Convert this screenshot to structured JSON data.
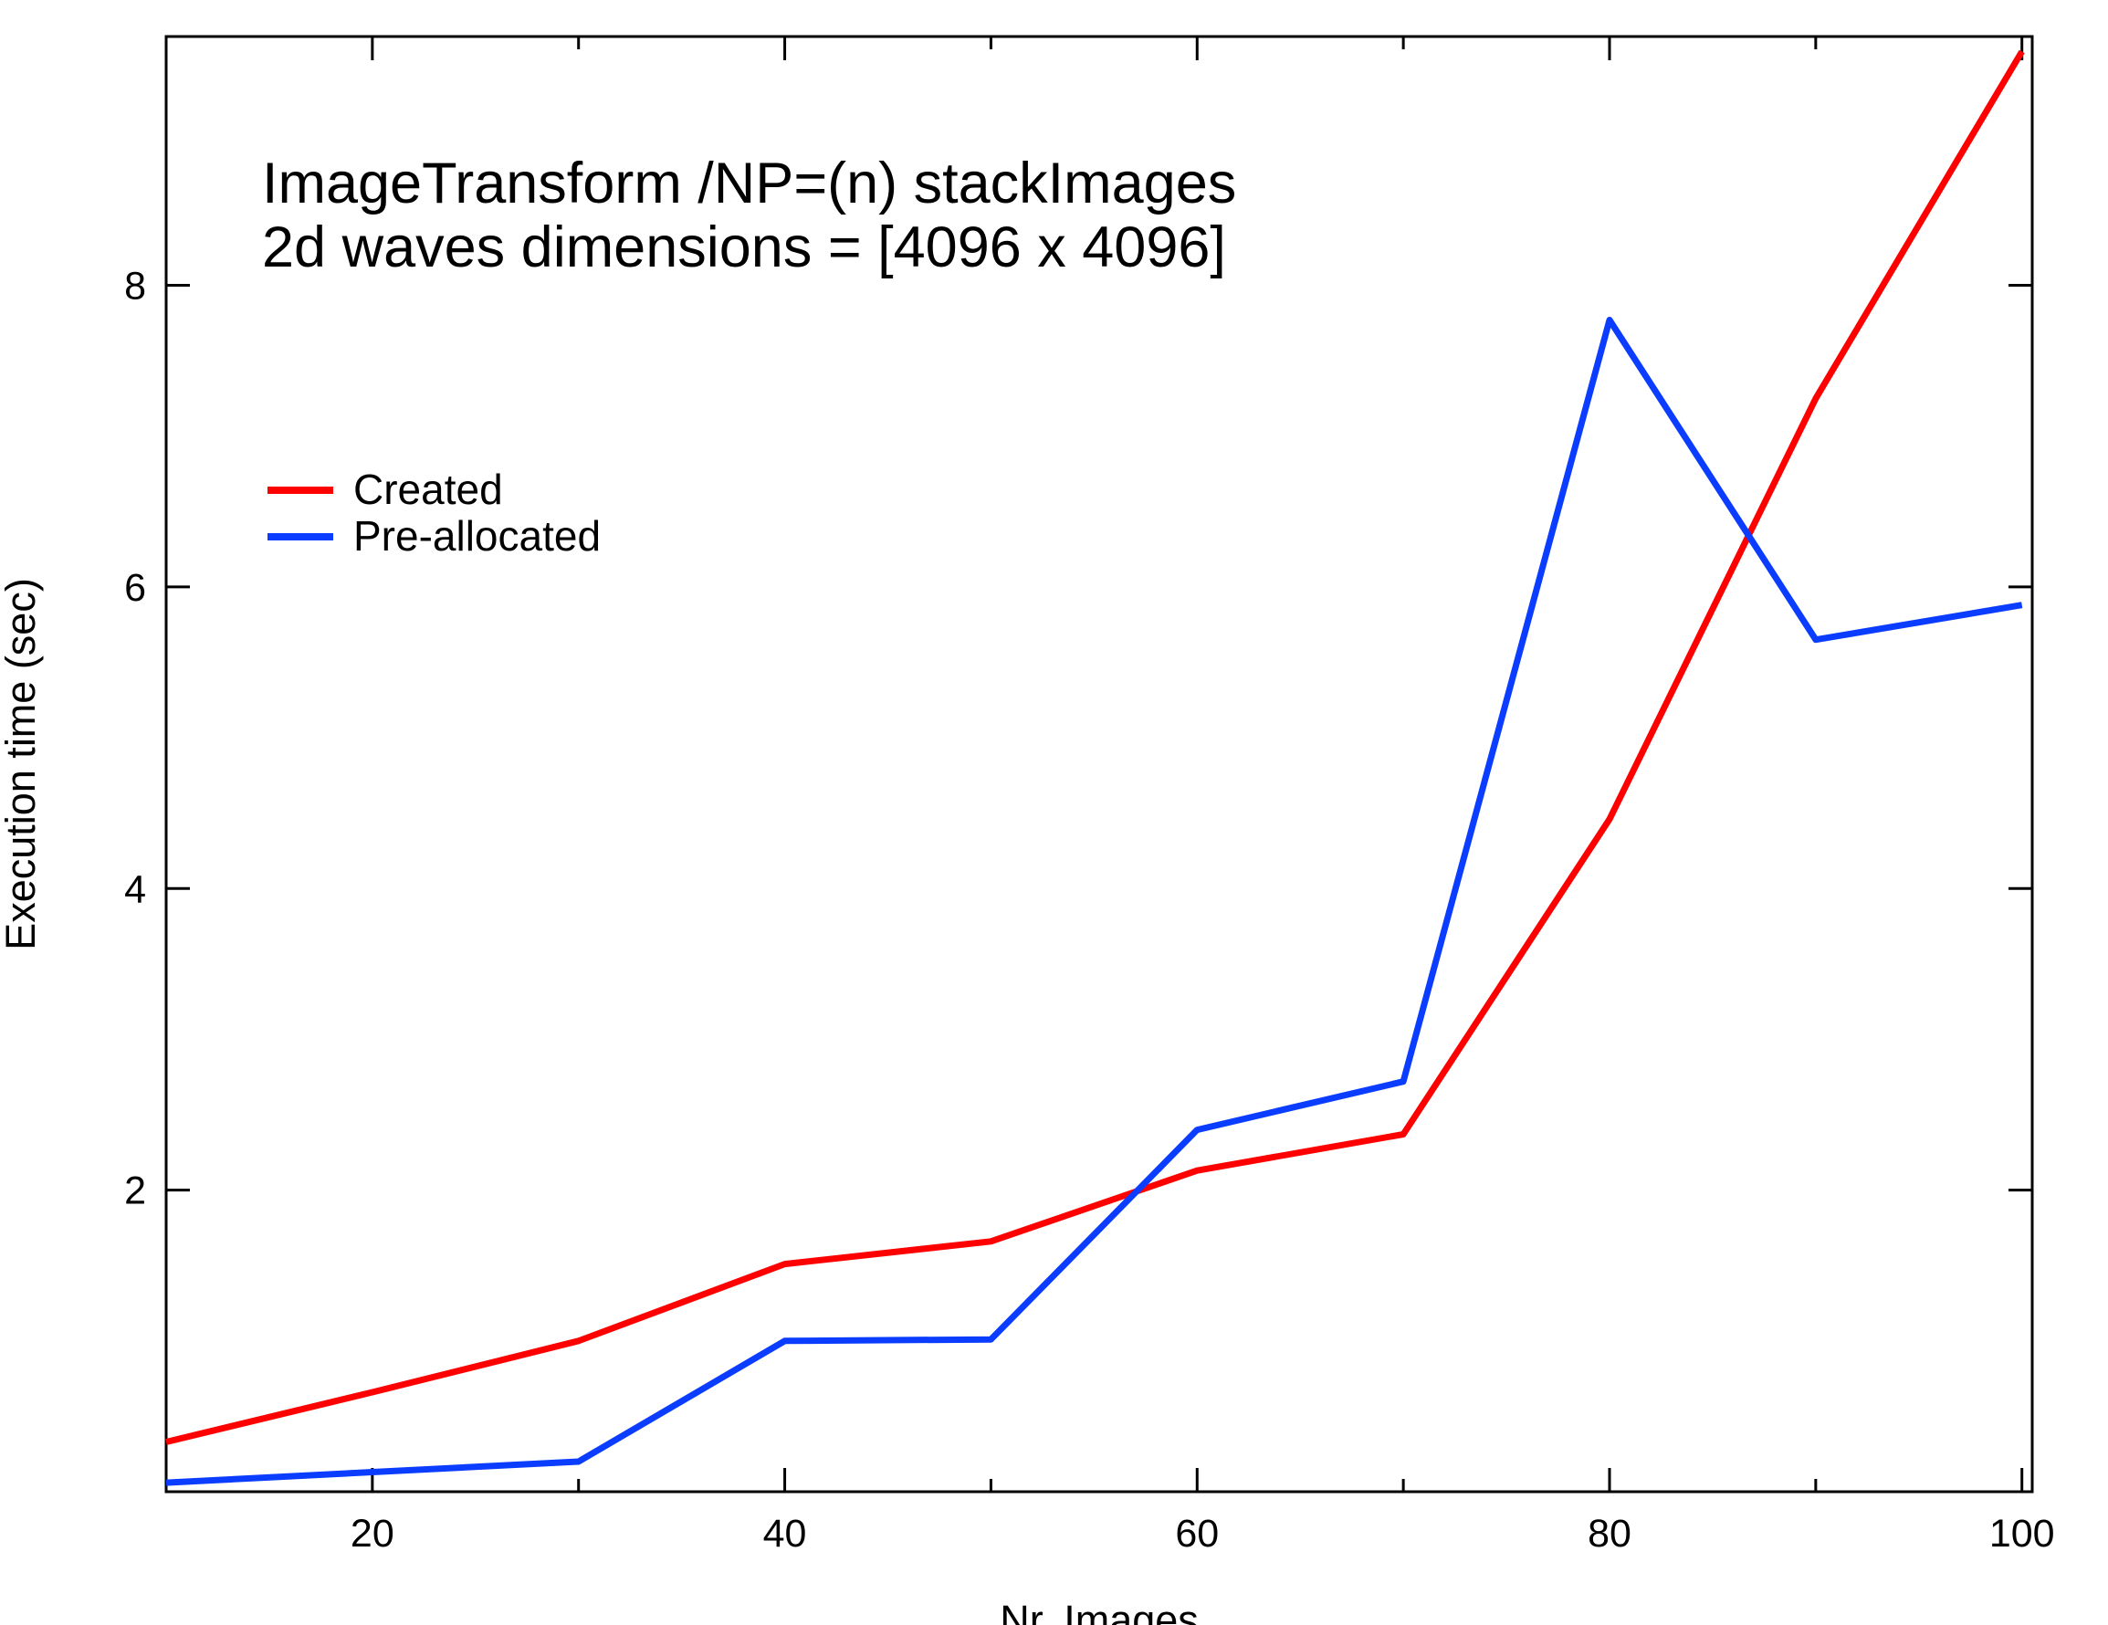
{
  "chart_data": {
    "type": "line",
    "title_lines": [
      "ImageTransform /NP=(n) stackImages",
      "2d waves dimensions = [4096 x 4096]"
    ],
    "xlabel": "Nr. Images",
    "ylabel": "Execution time (sec)",
    "xlim": [
      10,
      100.5
    ],
    "ylim": [
      0,
      9.65
    ],
    "xticks": [
      20,
      40,
      60,
      80,
      100
    ],
    "yticks": [
      2,
      4,
      6,
      8
    ],
    "x_minor_ticks": [
      30,
      50,
      70,
      90
    ],
    "grid": false,
    "legend_placement": "upper-left",
    "series": [
      {
        "name": "Created",
        "color": "#ff0000",
        "x": [
          10,
          20,
          30,
          40,
          50,
          60,
          70,
          80,
          90,
          100
        ],
        "y": [
          0.33,
          0.66,
          1.0,
          1.51,
          1.66,
          2.13,
          2.37,
          4.46,
          7.25,
          9.55
        ]
      },
      {
        "name": "Pre-allocated",
        "color": "#0a3dff",
        "x": [
          10,
          20,
          30,
          40,
          50,
          60,
          70,
          80,
          90,
          100
        ],
        "y": [
          0.06,
          0.13,
          0.2,
          1.0,
          1.01,
          2.4,
          2.72,
          7.77,
          5.65,
          5.88
        ]
      }
    ]
  }
}
